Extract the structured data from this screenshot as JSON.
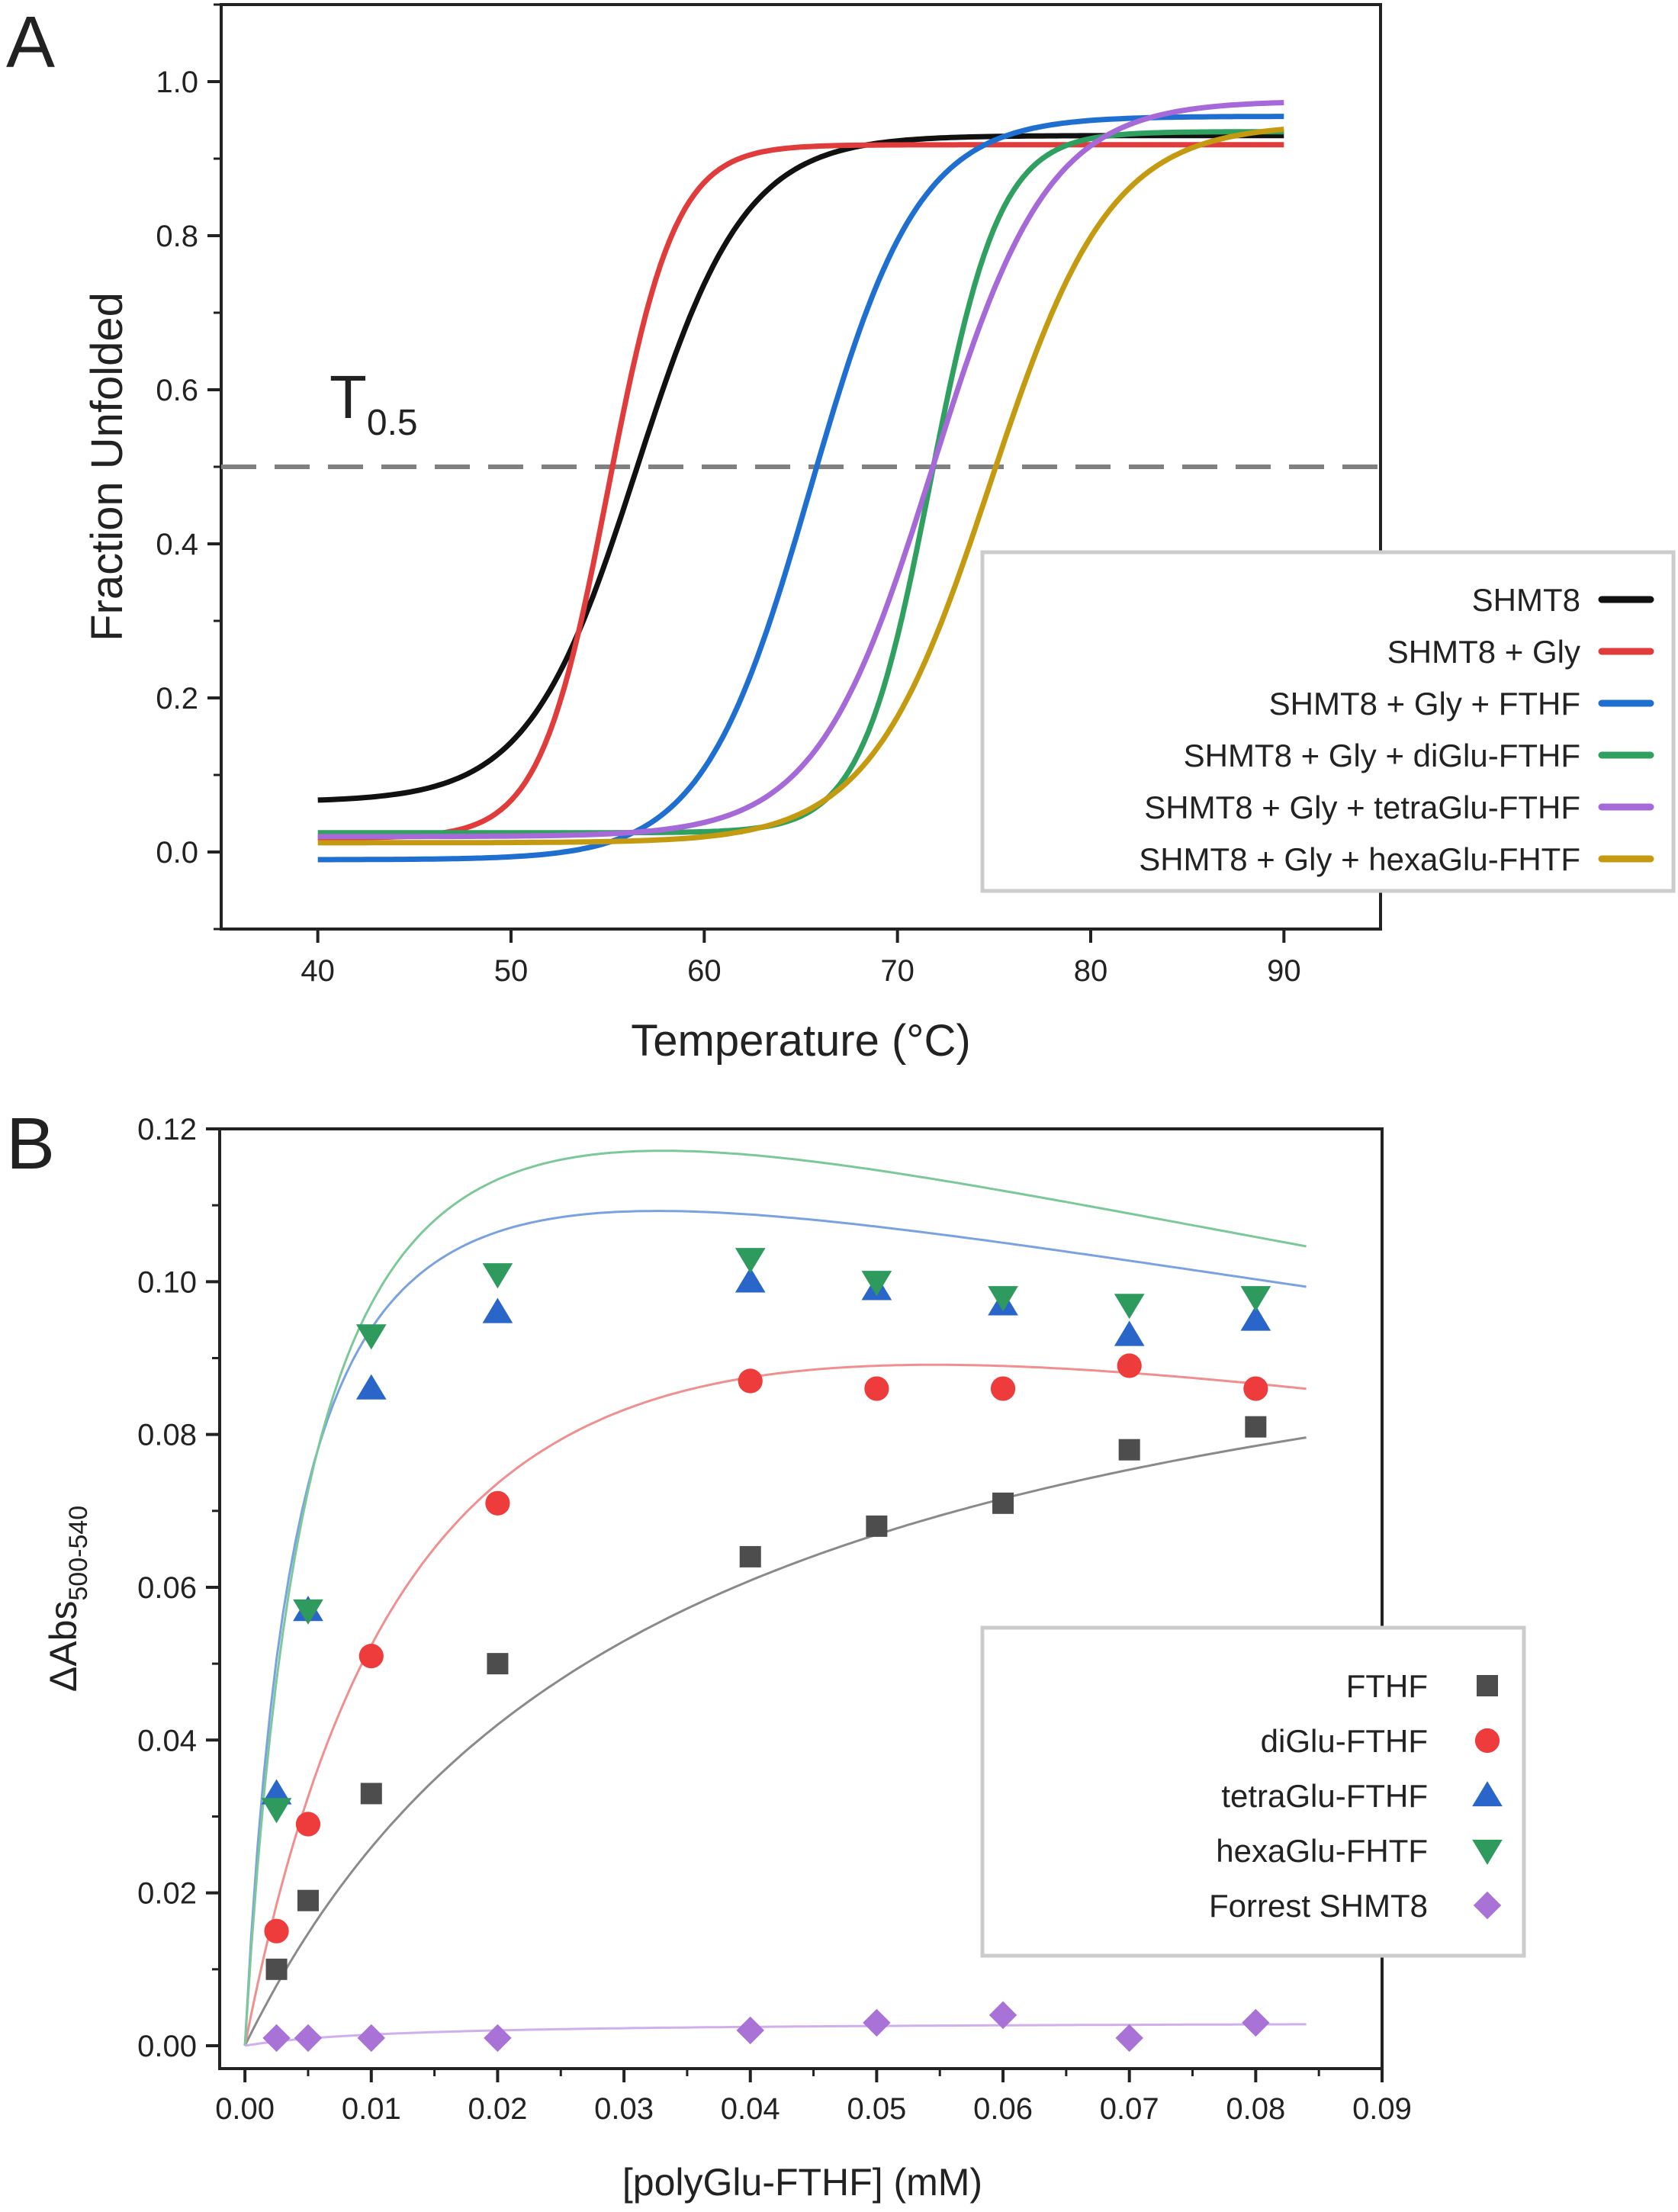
{
  "panels": {
    "a": {
      "letter": "A"
    },
    "b": {
      "letter": "B"
    }
  },
  "chart_data": [
    {
      "id": "A",
      "type": "line",
      "xlabel": "Temperature (°C)",
      "ylabel": "Fraction Unfolded",
      "xlim": [
        35,
        95
      ],
      "ylim": [
        -0.1,
        1.1
      ],
      "xticks": [
        40,
        50,
        60,
        70,
        80,
        90
      ],
      "yticks": [
        0.0,
        0.2,
        0.4,
        0.6,
        0.8,
        1.0
      ],
      "xtick_labels": [
        "40",
        "50",
        "60",
        "70",
        "80",
        "90"
      ],
      "ytick_labels": [
        "0.0",
        "0.2",
        "0.4",
        "0.6",
        "0.8",
        "1.0"
      ],
      "x_range": [
        40,
        90
      ],
      "annotation": {
        "text": "T",
        "subscript": "0.5"
      },
      "threshold": {
        "y": 0.5,
        "style": "dashed",
        "color": "#808080"
      },
      "legend_position": "lower-right",
      "series": [
        {
          "name": "SHMT8",
          "color": "#111111",
          "bottom": 0.065,
          "top": 0.93,
          "tm": 56.5,
          "slope": 2.8
        },
        {
          "name": "SHMT8 + Gly",
          "color": "#e03c3c",
          "bottom": 0.018,
          "top": 0.918,
          "tm": 55.0,
          "slope": 1.75
        },
        {
          "name": "SHMT8 + Gly + FTHF",
          "color": "#1f6fd0",
          "bottom": -0.01,
          "top": 0.955,
          "tm": 65.5,
          "slope": 2.8
        },
        {
          "name": "SHMT8 + Gly + diGlu-FTHF",
          "color": "#2fa060",
          "bottom": 0.025,
          "top": 0.935,
          "tm": 71.7,
          "slope": 1.8
        },
        {
          "name": "SHMT8 + Gly + tetraGlu-FTHF",
          "color": "#a66ad8",
          "bottom": 0.02,
          "top": 0.975,
          "tm": 71.8,
          "slope": 3.0
        },
        {
          "name": "SHMT8 + Gly + hexaGlu-FHTF",
          "color": "#c49a10",
          "bottom": 0.012,
          "top": 0.945,
          "tm": 74.8,
          "slope": 3.1
        }
      ]
    },
    {
      "id": "B",
      "type": "scatter",
      "xlabel": "[polyGlu-FTHF] (mM)",
      "ylabel_main": "ΔAbs",
      "ylabel_sub": "500-540",
      "xlim": [
        -0.002,
        0.09
      ],
      "ylim": [
        -0.003,
        0.12
      ],
      "xticks": [
        0.0,
        0.01,
        0.02,
        0.03,
        0.04,
        0.05,
        0.06,
        0.07,
        0.08,
        0.09
      ],
      "yticks": [
        0.0,
        0.02,
        0.04,
        0.06,
        0.08,
        0.1,
        0.12
      ],
      "xtick_labels": [
        "0.00",
        "0.01",
        "0.02",
        "0.03",
        "0.04",
        "0.05",
        "0.06",
        "0.07",
        "0.08",
        "0.09"
      ],
      "ytick_labels": [
        "0.00",
        "0.02",
        "0.04",
        "0.06",
        "0.08",
        "0.10",
        "0.12"
      ],
      "legend_position": "right-middle",
      "series": [
        {
          "name": "FTHF",
          "marker": "square",
          "color": "#4d4d4d",
          "fit_color": "#8a8a8a",
          "x": [
            0.0025,
            0.005,
            0.01,
            0.02,
            0.04,
            0.05,
            0.06,
            0.07,
            0.08
          ],
          "y": [
            0.01,
            0.019,
            0.033,
            0.05,
            0.064,
            0.068,
            0.071,
            0.078,
            0.081
          ],
          "fit": {
            "vmax": 0.1105,
            "kd": 0.0326,
            "ki": null
          }
        },
        {
          "name": "diGlu-FTHF",
          "marker": "circle",
          "color": "#ee3b3b",
          "fit_color": "#ef8f8f",
          "x": [
            0.0025,
            0.005,
            0.01,
            0.02,
            0.04,
            0.05,
            0.06,
            0.07,
            0.08
          ],
          "y": [
            0.015,
            0.029,
            0.051,
            0.071,
            0.087,
            0.086,
            0.086,
            0.089,
            0.086
          ],
          "fit": {
            "vmax": 0.145,
            "kd": 0.0171,
            "ki": 0.174
          }
        },
        {
          "name": "tetraGlu-FTHF",
          "marker": "triangle-up",
          "color": "#2a66c9",
          "fit_color": "#7aa2e0",
          "x": [
            0.0025,
            0.005,
            0.01,
            0.02,
            0.04,
            0.05,
            0.06,
            0.07,
            0.08
          ],
          "y": [
            0.033,
            0.057,
            0.086,
            0.096,
            0.1,
            0.099,
            0.097,
            0.093,
            0.095
          ],
          "fit": {
            "vmax": 0.138,
            "kd": 0.0043,
            "ki": 0.2485
          }
        },
        {
          "name": "hexaGlu-FHTF",
          "marker": "triangle-down",
          "color": "#2e9a5e",
          "fit_color": "#7cc89a",
          "x": [
            0.0025,
            0.005,
            0.01,
            0.02,
            0.04,
            0.05,
            0.06,
            0.07,
            0.08
          ],
          "y": [
            0.031,
            0.057,
            0.093,
            0.101,
            0.103,
            0.1,
            0.098,
            0.097,
            0.098
          ],
          "fit": {
            "vmax": 0.1575,
            "kd": 0.0057,
            "ki": 0.192
          }
        },
        {
          "name": "Forrest SHMT8",
          "marker": "diamond",
          "color": "#a872d6",
          "fit_color": "#cfb0ec",
          "x": [
            0.0025,
            0.005,
            0.01,
            0.02,
            0.04,
            0.05,
            0.06,
            0.07,
            0.08
          ],
          "y": [
            0.001,
            0.001,
            0.001,
            0.001,
            0.002,
            0.003,
            0.004,
            0.001,
            0.003
          ],
          "fit": {
            "vmax": 0.0032,
            "kd": 0.012,
            "ki": null
          }
        }
      ]
    }
  ]
}
